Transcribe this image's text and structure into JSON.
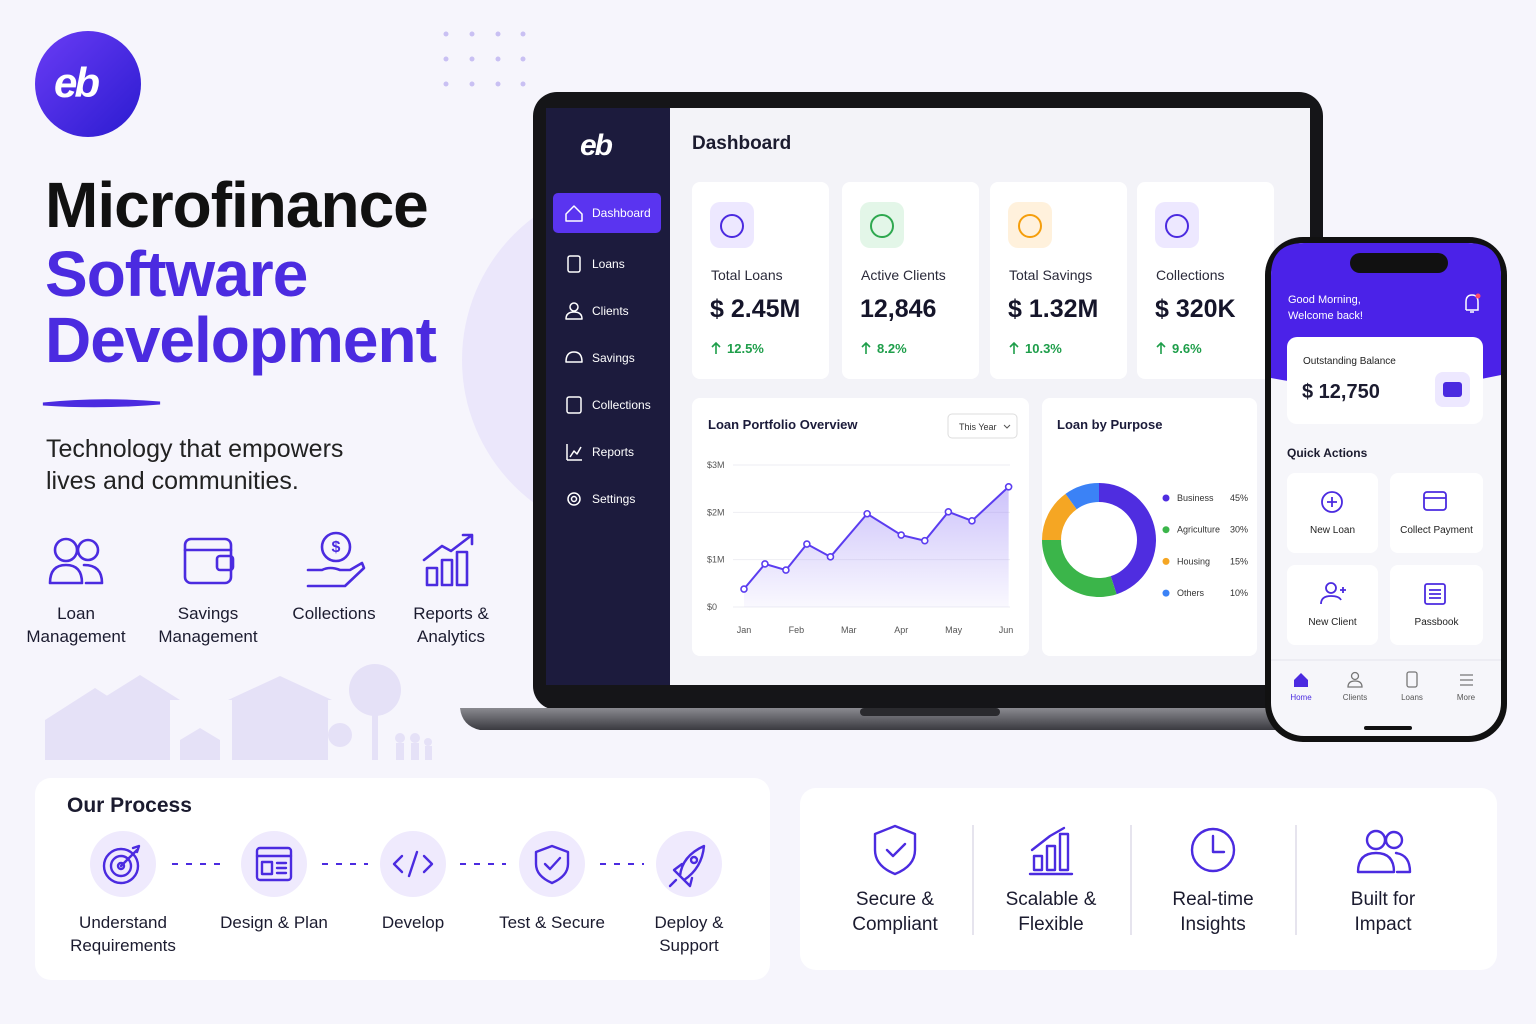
{
  "logo": "eb",
  "hero": {
    "title": [
      "Microfinance",
      "Software",
      "Development"
    ],
    "tagline": "Technology that empowers lives and communities.",
    "features": [
      "Loan Management",
      "Savings Management",
      "Collections",
      "Reports & Analytics"
    ]
  },
  "dashboard": {
    "nav": [
      "Dashboard",
      "Loans",
      "Clients",
      "Savings",
      "Collections",
      "Reports",
      "Settings"
    ],
    "title": "Dashboard",
    "kpis": [
      {
        "label": "Total Loans",
        "value": "$ 2.45M",
        "change": "12.5%"
      },
      {
        "label": "Active Clients",
        "value": "12,846",
        "change": "8.2%"
      },
      {
        "label": "Total Savings",
        "value": "$ 1.32M",
        "change": "10.3%"
      },
      {
        "label": "Collections",
        "value": "$ 320K",
        "change": "9.6%"
      }
    ]
  },
  "chart_data": [
    {
      "type": "line",
      "title": "Loan Portfolio Overview",
      "filter": "This Year",
      "x": [
        0,
        0.4,
        0.8,
        1.2,
        1.65,
        2.35,
        3,
        3.45,
        3.9,
        4.35,
        5.05
      ],
      "values": [
        0.38,
        0.91,
        0.78,
        1.33,
        1.06,
        1.97,
        1.52,
        1.4,
        2.01,
        1.82,
        2.54
      ],
      "color": "#5b3df0",
      "xlim": [
        -0.2,
        5.2
      ],
      "ylim": [
        0,
        3
      ],
      "xticks": [
        {
          "value": 0,
          "label": "Jan"
        },
        {
          "value": 1,
          "label": "Feb"
        },
        {
          "value": 2,
          "label": "Mar"
        },
        {
          "value": 3,
          "label": "Apr"
        },
        {
          "value": 4,
          "label": "May"
        },
        {
          "value": 5,
          "label": "Jun"
        }
      ],
      "yticks": [
        {
          "value": 0,
          "label": "$0"
        },
        {
          "value": 1,
          "label": "$1M"
        },
        {
          "value": 2,
          "label": "$2M"
        },
        {
          "value": 3,
          "label": "$3M"
        }
      ],
      "grid": true
    },
    {
      "type": "pie",
      "title": "Loan by Purpose",
      "categories": [
        "Business",
        "Agriculture",
        "Housing",
        "Others"
      ],
      "values": [
        45,
        30,
        15,
        10
      ],
      "value_labels": [
        "45%",
        "30%",
        "15%",
        "10%"
      ],
      "colors": [
        "#4f2de0",
        "#3bb54a",
        "#f5a623",
        "#3b82f6"
      ]
    }
  ],
  "phone": {
    "greeting": "Good Morning, Welcome back!",
    "balance_label": "Outstanding Balance",
    "balance": "$ 12,750",
    "quick_actions": "Quick Actions",
    "actions": [
      "New Loan",
      "Collect Payment",
      "New Client",
      "Passbook"
    ],
    "tabs": [
      "Home",
      "Clients",
      "Loans",
      "More"
    ]
  },
  "process": {
    "title": "Our Process",
    "steps": [
      "Understand Requirements",
      "Design & Plan",
      "Develop",
      "Test & Secure",
      "Deploy & Support"
    ]
  },
  "values": [
    "Secure & Compliant",
    "Scalable & Flexible",
    "Real-time Insights",
    "Built for Impact"
  ]
}
